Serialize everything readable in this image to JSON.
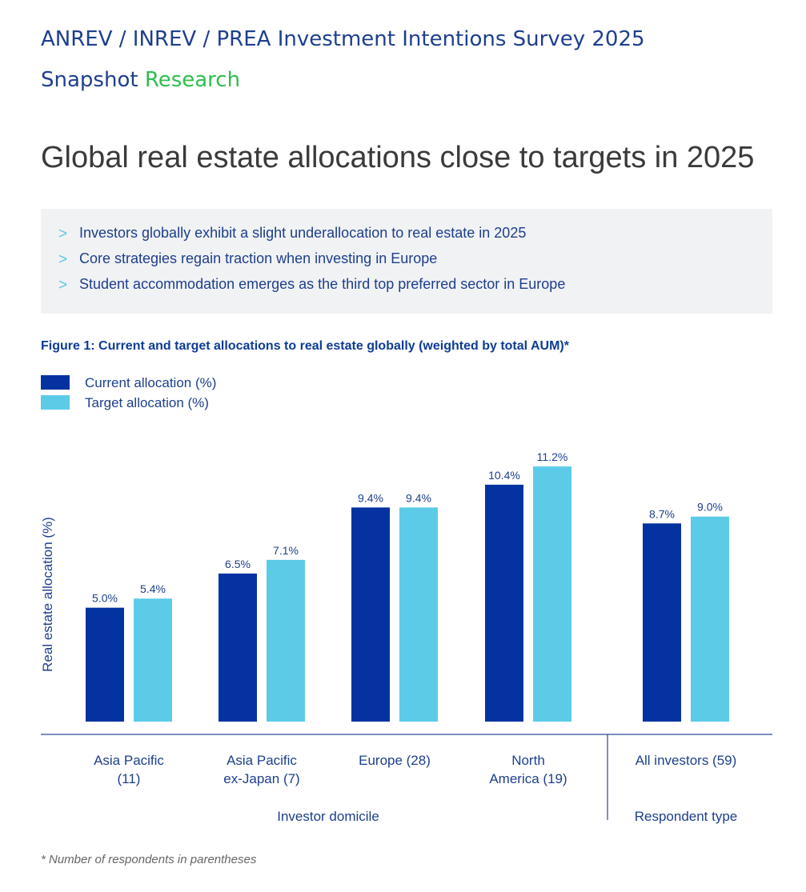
{
  "header": {
    "survey_title": "ANREV / INREV / PREA Investment Intentions Survey 2025",
    "snapshot_word": "Snapshot",
    "research_word": "Research"
  },
  "headline": "Global real estate allocations close to targets in 2025",
  "highlights": [
    "Investors globally exhibit a slight underallocation to real estate in 2025",
    "Core strategies regain traction when investing in Europe",
    "Student accommodation emerges as the third top preferred sector in Europe"
  ],
  "chevron": ">",
  "colors": {
    "current": "#0433a1",
    "target": "#5bcbe8",
    "text": "#1d3f8c"
  },
  "footnote": "* Number of respondents in parentheses",
  "chart_data": {
    "type": "bar",
    "title": "Figure 1: Current and target allocations to real estate globally (weighted by total AUM)*",
    "ylabel": "Real estate allocation (%)",
    "ylim": [
      0,
      11.8
    ],
    "grid": false,
    "legend_position": "top-left",
    "categories": [
      [
        "Asia Pacific",
        "(11)"
      ],
      [
        "Asia Pacific",
        "ex-Japan (7)"
      ],
      [
        "Europe (28)"
      ],
      [
        "North",
        "America (19)"
      ],
      [
        "All investors (59)"
      ]
    ],
    "groups": [
      {
        "label": "Investor domicile",
        "categories": [
          0,
          1,
          2,
          3
        ]
      },
      {
        "label": "Respondent type",
        "categories": [
          4
        ]
      }
    ],
    "series": [
      {
        "name": "Current allocation (%)",
        "values": [
          5.0,
          6.5,
          9.4,
          10.4,
          8.7
        ],
        "labels": [
          "5.0%",
          "6.5%",
          "9.4%",
          "10.4%",
          "8.7%"
        ]
      },
      {
        "name": "Target allocation (%)",
        "values": [
          5.4,
          7.1,
          9.4,
          11.2,
          9.0
        ],
        "labels": [
          "5.4%",
          "7.1%",
          "9.4%",
          "11.2%",
          "9.0%"
        ]
      }
    ]
  }
}
